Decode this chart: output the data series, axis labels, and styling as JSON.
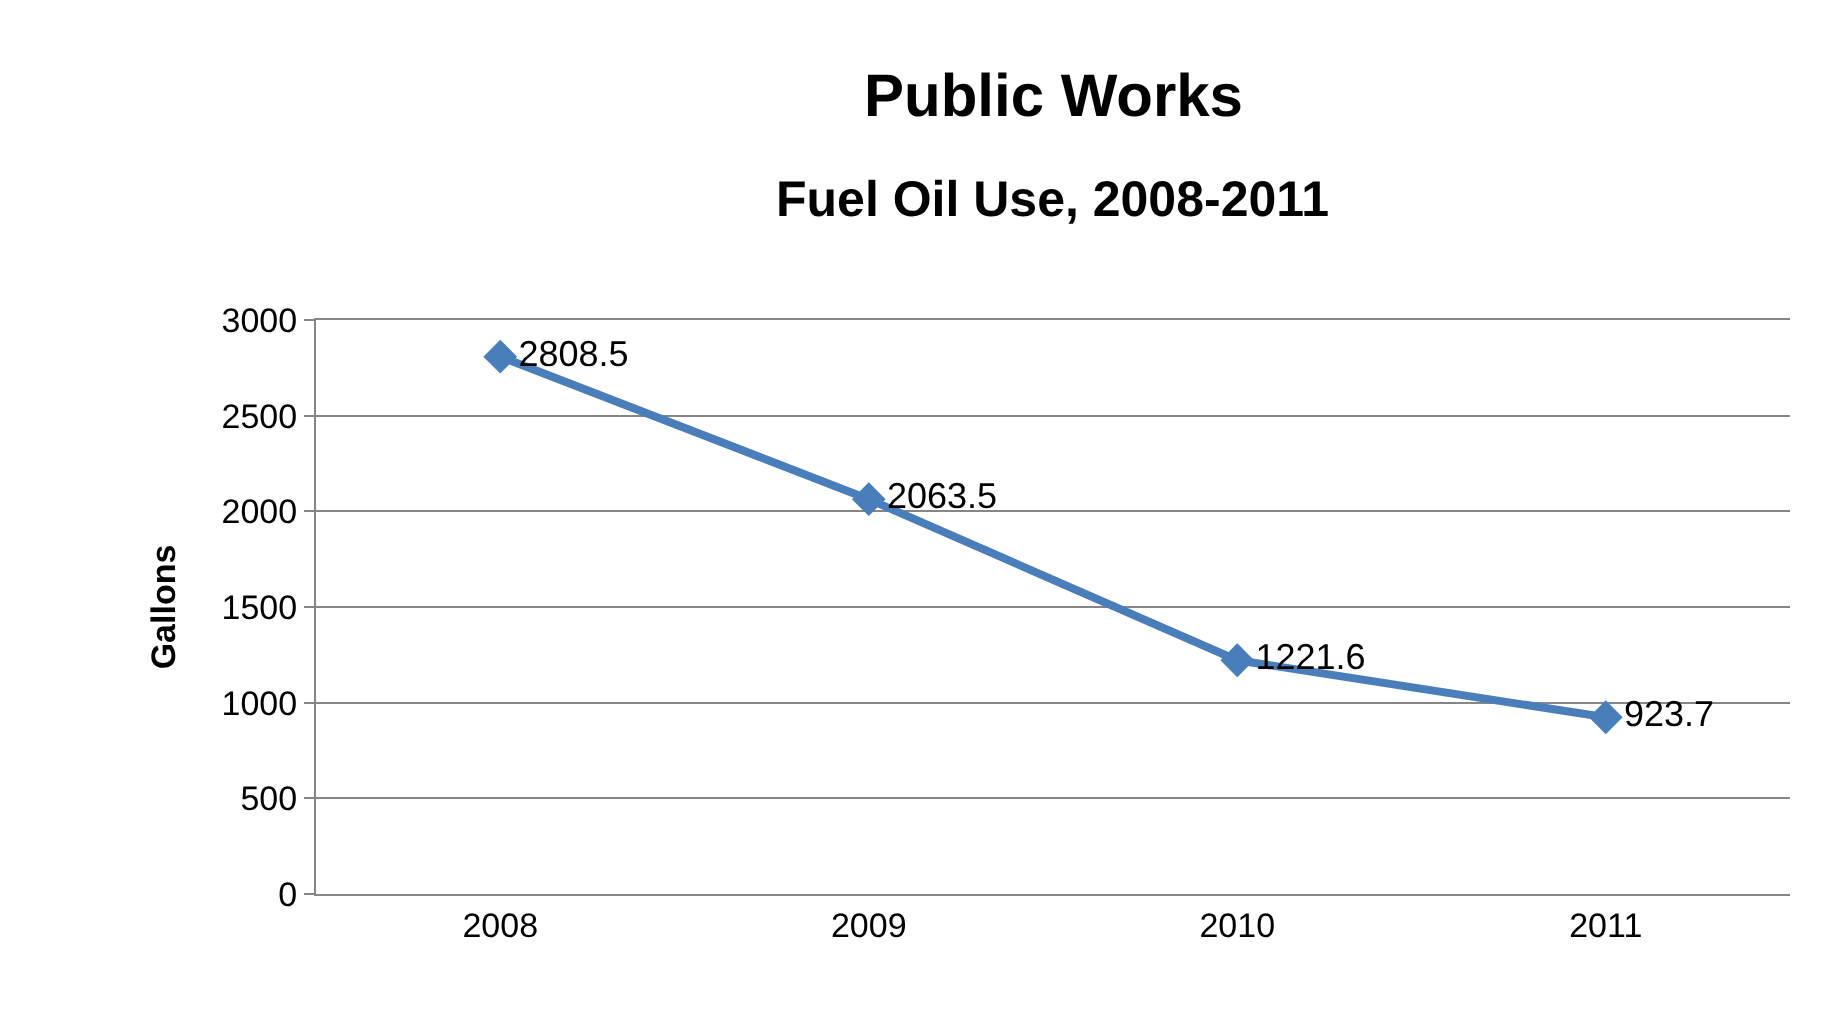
{
  "chart_data": {
    "type": "line",
    "title": "Public Works",
    "subtitle": "Fuel Oil Use, 2008-2011",
    "ylabel": "Gallons",
    "categories": [
      "2008",
      "2009",
      "2010",
      "2011"
    ],
    "series": [
      {
        "color": "#4a7ebb",
        "values": [
          2808.5,
          2063.5,
          1221.6,
          923.7
        ]
      }
    ],
    "ylim": [
      0,
      3000
    ],
    "yticks": [
      0,
      500,
      1000,
      1500,
      2000,
      2500,
      3000
    ],
    "grid": "y",
    "marker": "diamond",
    "line_style": "solid",
    "data_labels": true
  }
}
